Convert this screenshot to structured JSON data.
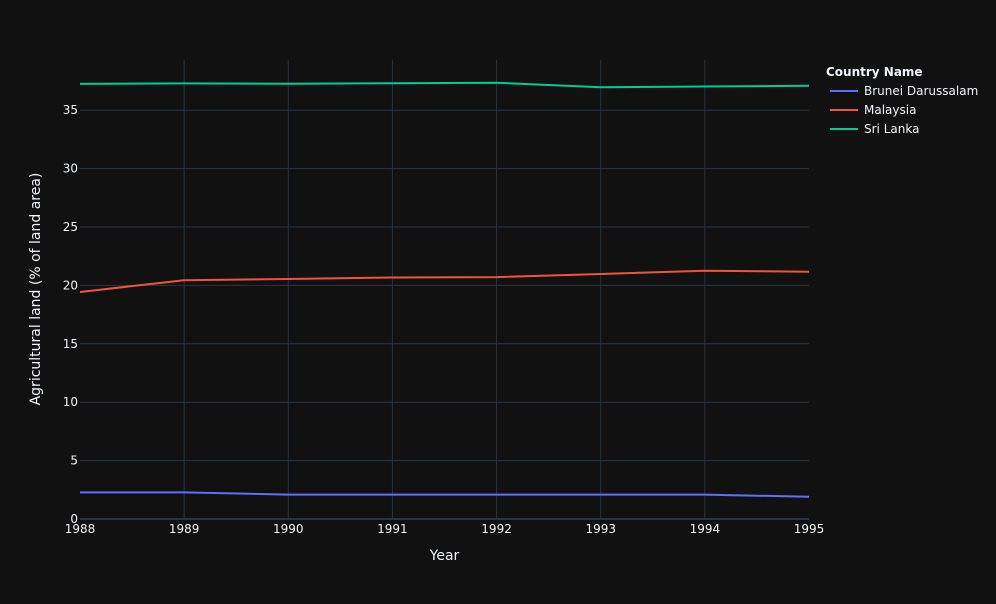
{
  "chart_data": {
    "type": "line",
    "title": "",
    "xlabel": "Year",
    "ylabel": "Agricultural land (% of land area)",
    "x": [
      1988,
      1989,
      1990,
      1991,
      1992,
      1993,
      1994,
      1995
    ],
    "xlim": [
      1988,
      1995
    ],
    "ylim": [
      0,
      39.3
    ],
    "y_ticks": [
      0,
      5,
      10,
      15,
      20,
      25,
      30,
      35
    ],
    "x_ticks": [
      1988,
      1989,
      1990,
      1991,
      1992,
      1993,
      1994,
      1995
    ],
    "grid": true,
    "legend": {
      "title": "Country Name",
      "placement": "top-right, outside plot"
    },
    "series": [
      {
        "name": "Brunei Darussalam",
        "color": "#636efa",
        "values": [
          2.28,
          2.28,
          2.09,
          2.09,
          2.09,
          2.09,
          2.09,
          1.9
        ]
      },
      {
        "name": "Malaysia",
        "color": "#ef553b",
        "values": [
          19.44,
          20.44,
          20.55,
          20.68,
          20.71,
          20.98,
          21.26,
          21.17
        ]
      },
      {
        "name": "Sri Lanka",
        "color": "#00cc96",
        "values": [
          37.26,
          37.3,
          37.27,
          37.31,
          37.35,
          36.97,
          37.03,
          37.09
        ]
      }
    ]
  },
  "theme": {
    "background": "#111111",
    "grid_color": "#283442",
    "text_color": "#f2f5fa"
  }
}
